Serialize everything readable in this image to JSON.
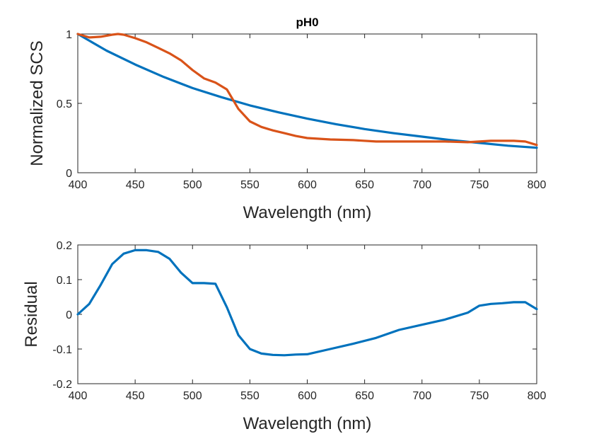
{
  "chart_data": [
    {
      "type": "line",
      "title": "pH0",
      "xlabel": "Wavelength (nm)",
      "ylabel": "Normalized SCS",
      "xlim": [
        400,
        800
      ],
      "ylim": [
        0,
        1
      ],
      "xticks": [
        400,
        450,
        500,
        550,
        600,
        650,
        700,
        750,
        800
      ],
      "xtick_labels": [
        "400",
        "450",
        "500",
        "550",
        "600",
        "650",
        "700",
        "750",
        "800"
      ],
      "yticks": [
        0,
        0.5,
        1
      ],
      "ytick_labels": [
        "0",
        "0.5",
        "1"
      ],
      "grid": false,
      "series": [
        {
          "color": "#0072BD",
          "x": [
            400,
            425,
            450,
            475,
            500,
            525,
            550,
            575,
            600,
            625,
            650,
            675,
            700,
            725,
            750,
            775,
            800
          ],
          "y": [
            1.0,
            0.88,
            0.78,
            0.69,
            0.61,
            0.545,
            0.485,
            0.435,
            0.39,
            0.35,
            0.315,
            0.285,
            0.26,
            0.235,
            0.215,
            0.195,
            0.18
          ]
        },
        {
          "color": "#D95319",
          "x": [
            400,
            410,
            420,
            430,
            435,
            440,
            450,
            460,
            470,
            480,
            490,
            500,
            510,
            520,
            530,
            540,
            550,
            560,
            570,
            580,
            590,
            600,
            620,
            640,
            660,
            680,
            700,
            720,
            740,
            750,
            760,
            770,
            780,
            790,
            800
          ],
          "y": [
            1.0,
            0.975,
            0.98,
            0.995,
            1.0,
            0.995,
            0.97,
            0.94,
            0.9,
            0.86,
            0.81,
            0.74,
            0.68,
            0.65,
            0.6,
            0.46,
            0.37,
            0.33,
            0.305,
            0.285,
            0.265,
            0.25,
            0.24,
            0.235,
            0.225,
            0.225,
            0.225,
            0.225,
            0.22,
            0.225,
            0.23,
            0.23,
            0.23,
            0.225,
            0.2
          ]
        }
      ]
    },
    {
      "type": "line",
      "title": "",
      "xlabel": "Wavelength (nm)",
      "ylabel": "Residual",
      "xlim": [
        400,
        800
      ],
      "ylim": [
        -0.2,
        0.2
      ],
      "xticks": [
        400,
        450,
        500,
        550,
        600,
        650,
        700,
        750,
        800
      ],
      "xtick_labels": [
        "400",
        "450",
        "500",
        "550",
        "600",
        "650",
        "700",
        "750",
        "800"
      ],
      "yticks": [
        -0.2,
        -0.1,
        0,
        0.1,
        0.2
      ],
      "ytick_labels": [
        "-0.2",
        "-0.1",
        "0",
        "0.1",
        "0.2"
      ],
      "grid": false,
      "series": [
        {
          "color": "#0072BD",
          "x": [
            400,
            410,
            420,
            430,
            440,
            450,
            460,
            470,
            480,
            490,
            500,
            510,
            520,
            530,
            540,
            550,
            560,
            570,
            580,
            590,
            600,
            620,
            640,
            660,
            680,
            700,
            720,
            740,
            750,
            760,
            770,
            780,
            790,
            800
          ],
          "y": [
            0.0,
            0.03,
            0.085,
            0.145,
            0.175,
            0.185,
            0.185,
            0.18,
            0.16,
            0.12,
            0.09,
            0.09,
            0.088,
            0.02,
            -0.06,
            -0.1,
            -0.113,
            -0.117,
            -0.118,
            -0.116,
            -0.115,
            -0.1,
            -0.085,
            -0.068,
            -0.045,
            -0.03,
            -0.015,
            0.005,
            0.025,
            0.03,
            0.032,
            0.035,
            0.035,
            0.015
          ]
        }
      ]
    }
  ]
}
